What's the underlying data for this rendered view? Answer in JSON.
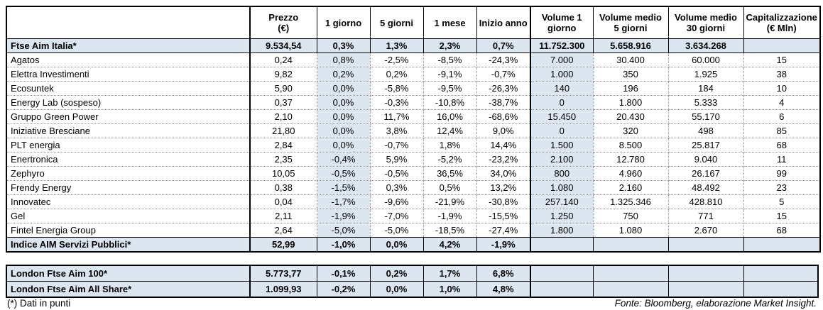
{
  "colors": {
    "highlight": "#dce6f1",
    "border": "#000000"
  },
  "table": {
    "headers": [
      "",
      "Prezzo\n(€)",
      "1 giorno",
      "5 giorni",
      "1 mese",
      "Inizio anno",
      "Volume 1\ngiorno",
      "Volume medio\n5 giorni",
      "Volume medio\n30 giorni",
      "Capitalizzazione\n(€ Mln)"
    ],
    "rows": [
      {
        "name": "Ftse Aim Italia*",
        "type": "index",
        "cells": [
          "9.534,54",
          "0,3%",
          "1,3%",
          "2,3%",
          "0,7%",
          "11.752.300",
          "5.658.916",
          "3.634.268",
          ""
        ]
      },
      {
        "name": "Agatos",
        "type": "stock",
        "cells": [
          "0,24",
          "0,8%",
          "-2,5%",
          "-8,5%",
          "-24,3%",
          "7.000",
          "30.400",
          "60.000",
          "15"
        ]
      },
      {
        "name": "Elettra Investimenti",
        "type": "stock",
        "cells": [
          "9,82",
          "0,2%",
          "0,2%",
          "-9,1%",
          "-0,7%",
          "1.000",
          "350",
          "1.925",
          "38"
        ]
      },
      {
        "name": "Ecosuntek",
        "type": "stock",
        "cells": [
          "5,90",
          "0,0%",
          "-5,8%",
          "-9,5%",
          "-26,3%",
          "140",
          "196",
          "184",
          "10"
        ]
      },
      {
        "name": "Energy Lab (sospeso)",
        "type": "stock",
        "cells": [
          "0,37",
          "0,0%",
          "-0,3%",
          "-10,8%",
          "-38,7%",
          "0",
          "1.800",
          "5.333",
          "4"
        ]
      },
      {
        "name": "Gruppo Green Power",
        "type": "stock",
        "cells": [
          "2,10",
          "0,0%",
          "11,7%",
          "16,0%",
          "-68,6%",
          "15.450",
          "20.430",
          "55.170",
          "6"
        ]
      },
      {
        "name": "Iniziative Bresciane",
        "type": "stock",
        "cells": [
          "21,80",
          "0,0%",
          "3,8%",
          "12,4%",
          "9,0%",
          "0",
          "320",
          "498",
          "85"
        ]
      },
      {
        "name": "PLT energia",
        "type": "stock",
        "cells": [
          "2,84",
          "0,0%",
          "-0,7%",
          "1,8%",
          "14,4%",
          "1.500",
          "8.500",
          "25.817",
          "68"
        ]
      },
      {
        "name": "Enertronica",
        "type": "stock",
        "cells": [
          "2,35",
          "-0,4%",
          "5,9%",
          "-5,2%",
          "-23,2%",
          "2.100",
          "12.780",
          "9.040",
          "11"
        ]
      },
      {
        "name": "Zephyro",
        "type": "stock",
        "cells": [
          "10,05",
          "-0,5%",
          "-0,5%",
          "36,5%",
          "34,0%",
          "800",
          "4.960",
          "26.167",
          "99"
        ]
      },
      {
        "name": "Frendy Energy",
        "type": "stock",
        "cells": [
          "0,38",
          "-1,5%",
          "0,3%",
          "0,5%",
          "13,2%",
          "1.080",
          "2.160",
          "48.492",
          "23"
        ]
      },
      {
        "name": "Innovatec",
        "type": "stock",
        "cells": [
          "0,04",
          "-1,7%",
          "-9,6%",
          "-21,9%",
          "-30,8%",
          "257.140",
          "1.325.346",
          "428.810",
          "5"
        ]
      },
      {
        "name": "Gel",
        "type": "stock",
        "cells": [
          "2,11",
          "-1,9%",
          "-7,0%",
          "-1,9%",
          "-15,5%",
          "1.250",
          "750",
          "771",
          "15"
        ]
      },
      {
        "name": "Fintel Energia Group",
        "type": "stock",
        "cells": [
          "2,64",
          "-5,0%",
          "-5,0%",
          "-18,5%",
          "-27,4%",
          "1.800",
          "1.080",
          "2.670",
          "68"
        ]
      },
      {
        "name": "Indice AIM Servizi Pubblici*",
        "type": "index",
        "cells": [
          "52,99",
          "-1,0%",
          "0,0%",
          "4,2%",
          "-1,9%",
          "",
          "",
          "",
          ""
        ]
      }
    ]
  },
  "london": {
    "rows": [
      {
        "name": "London Ftse Aim 100*",
        "type": "index",
        "cells": [
          "5.773,77",
          "-0,1%",
          "0,2%",
          "1,7%",
          "6,8%",
          "",
          "",
          "",
          ""
        ]
      },
      {
        "name": "London Ftse Aim All Share*",
        "type": "index",
        "cells": [
          "1.099,93",
          "-0,2%",
          "0,0%",
          "1,0%",
          "4,8%",
          "",
          "",
          "",
          ""
        ]
      }
    ]
  },
  "footer": {
    "note": "(*) Dati in punti",
    "source": "Fonte: Bloomberg, elaborazione Market Insight."
  }
}
